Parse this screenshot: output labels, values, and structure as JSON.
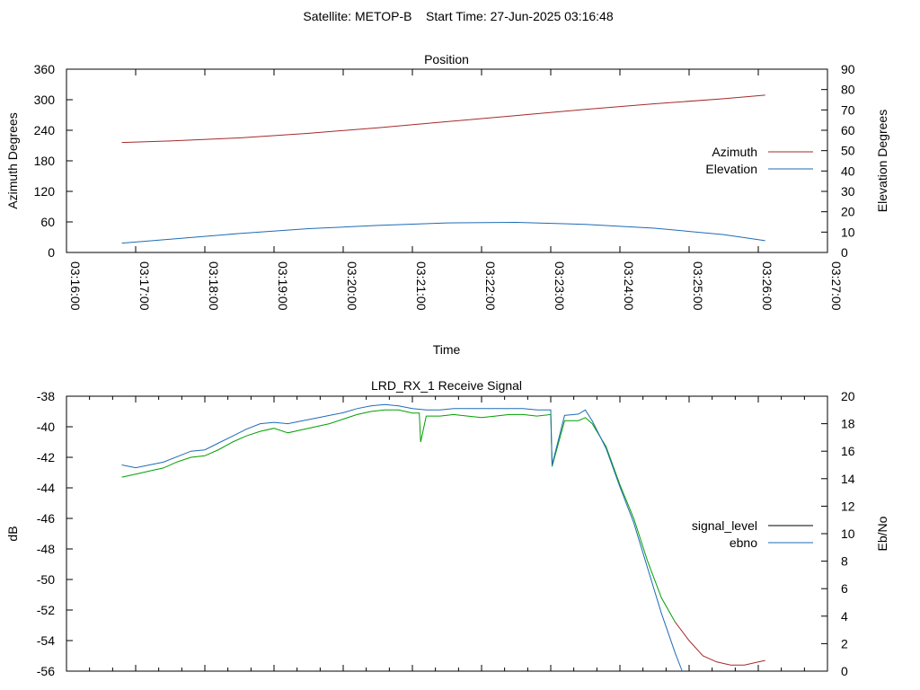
{
  "suptitle": "Satellite: METOP-B    Start Time: 27-Jun-2025 03:16:48",
  "chart_data": [
    {
      "type": "line",
      "title": "Position",
      "xlabel": "Time",
      "ylabel": "Azimuth Degrees",
      "y2label": "Elevation Degrees",
      "x_ticks": [
        "03:16:00",
        "03:17:00",
        "03:18:00",
        "03:19:00",
        "03:20:00",
        "03:21:00",
        "03:22:00",
        "03:23:00",
        "03:24:00",
        "03:25:00",
        "03:26:00",
        "03:27:00"
      ],
      "xlim_minutes": [
        0,
        11
      ],
      "ylim": [
        0,
        360
      ],
      "y_ticks": [
        0,
        60,
        120,
        180,
        240,
        300,
        360
      ],
      "y2lim": [
        0,
        90
      ],
      "y2_ticks": [
        0,
        10,
        20,
        30,
        40,
        50,
        60,
        70,
        80,
        90
      ],
      "legend_position": "right",
      "grid": false,
      "series": [
        {
          "name": "Azimuth",
          "axis": "y",
          "color": "#a52a2a",
          "x": [
            0.8,
            1.5,
            2.5,
            3.5,
            4.5,
            5.5,
            6.5,
            7.5,
            8.5,
            9.5,
            10.1
          ],
          "y": [
            216,
            219,
            225,
            234,
            245,
            257,
            269,
            281,
            292,
            302,
            309
          ]
        },
        {
          "name": "Elevation",
          "axis": "y2",
          "color": "#1f6bb5",
          "x": [
            0.8,
            1.5,
            2.5,
            3.5,
            4.5,
            5.5,
            6.5,
            7.5,
            8.5,
            9.5,
            10.1
          ],
          "y": [
            4.6,
            6.5,
            9.3,
            11.7,
            13.3,
            14.5,
            14.8,
            13.8,
            11.9,
            8.8,
            5.8
          ]
        }
      ]
    },
    {
      "type": "line",
      "title": "LRD_RX_1 Receive Signal",
      "xlabel": "",
      "ylabel": "dB",
      "y2label": "Eb/No",
      "ylim": [
        -56,
        -38
      ],
      "y_ticks": [
        -56,
        -54,
        -52,
        -50,
        -48,
        -46,
        -44,
        -42,
        -40,
        -38
      ],
      "y2lim": [
        0,
        20
      ],
      "y2_ticks": [
        0,
        2,
        4,
        6,
        8,
        10,
        12,
        14,
        16,
        18,
        20
      ],
      "xlim_minutes": [
        0,
        11
      ],
      "legend_position": "right",
      "grid": false,
      "series": [
        {
          "name": "signal_level",
          "axis": "y",
          "color": "#000000",
          "render_colors": [
            {
              "until": 8.8,
              "color": "#00a000"
            },
            {
              "until": 20,
              "color": "#a52a2a"
            }
          ],
          "x": [
            0.8,
            1.0,
            1.2,
            1.4,
            1.6,
            1.8,
            2.0,
            2.2,
            2.4,
            2.6,
            2.8,
            3.0,
            3.2,
            3.4,
            3.6,
            3.8,
            4.0,
            4.2,
            4.4,
            4.6,
            4.8,
            5.0,
            5.1,
            5.12,
            5.2,
            5.4,
            5.6,
            5.8,
            6.0,
            6.2,
            6.4,
            6.6,
            6.8,
            7.0,
            7.02,
            7.2,
            7.4,
            7.5,
            7.6,
            7.8,
            8.0,
            8.2,
            8.4,
            8.6,
            8.8,
            9.0,
            9.2,
            9.4,
            9.6,
            9.8,
            10.0,
            10.1
          ],
          "y": [
            -43.3,
            -43.1,
            -42.9,
            -42.7,
            -42.3,
            -42.0,
            -41.9,
            -41.5,
            -41.0,
            -40.6,
            -40.3,
            -40.1,
            -40.4,
            -40.2,
            -40.0,
            -39.8,
            -39.5,
            -39.2,
            -39.0,
            -38.9,
            -38.9,
            -39.1,
            -39.1,
            -41.0,
            -39.3,
            -39.3,
            -39.2,
            -39.3,
            -39.4,
            -39.3,
            -39.2,
            -39.2,
            -39.3,
            -39.2,
            -42.6,
            -39.6,
            -39.6,
            -39.4,
            -39.8,
            -41.3,
            -43.8,
            -46.0,
            -48.8,
            -51.2,
            -52.8,
            -54.0,
            -55.0,
            -55.4,
            -55.6,
            -55.6,
            -55.4,
            -55.3
          ]
        },
        {
          "name": "ebno",
          "axis": "y2",
          "color": "#1f6bb5",
          "x": [
            0.8,
            1.0,
            1.2,
            1.4,
            1.6,
            1.8,
            2.0,
            2.2,
            2.4,
            2.6,
            2.8,
            3.0,
            3.2,
            3.4,
            3.6,
            3.8,
            4.0,
            4.2,
            4.4,
            4.6,
            4.8,
            5.0,
            5.2,
            5.4,
            5.6,
            5.8,
            6.0,
            6.2,
            6.4,
            6.6,
            6.8,
            7.0,
            7.02,
            7.2,
            7.4,
            7.5,
            7.6,
            7.8,
            8.0,
            8.2,
            8.4,
            8.6,
            8.8,
            8.9
          ],
          "y": [
            15.0,
            14.8,
            15.0,
            15.2,
            15.6,
            16.0,
            16.1,
            16.6,
            17.1,
            17.6,
            18.0,
            18.1,
            18.0,
            18.2,
            18.4,
            18.6,
            18.8,
            19.1,
            19.3,
            19.4,
            19.3,
            19.1,
            19.0,
            19.0,
            19.1,
            19.1,
            19.1,
            19.1,
            19.1,
            19.1,
            19.0,
            19.0,
            15.0,
            18.6,
            18.7,
            19.0,
            18.2,
            16.2,
            13.4,
            10.8,
            7.5,
            4.2,
            1.3,
            0.0
          ]
        }
      ]
    }
  ]
}
